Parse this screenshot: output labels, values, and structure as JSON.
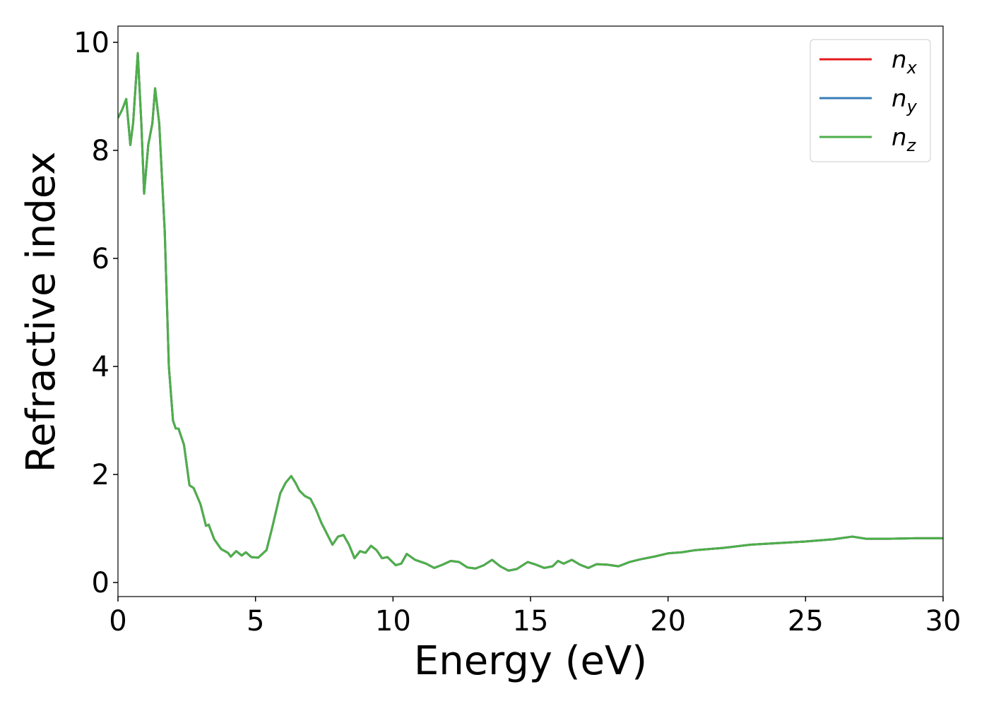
{
  "chart_data": {
    "type": "line",
    "x_label": "Energy (eV)",
    "y_label": "Refractive index",
    "xlim": [
      0,
      30
    ],
    "ylim": [
      -0.26,
      10.3
    ],
    "xticks": [
      0,
      5,
      10,
      15,
      20,
      25,
      30
    ],
    "yticks": [
      0,
      2,
      4,
      6,
      8,
      10
    ],
    "legend_position": "upper right",
    "grid": false,
    "x": [
      0,
      0.15,
      0.3,
      0.45,
      0.55,
      0.72,
      0.85,
      0.95,
      1.1,
      1.25,
      1.35,
      1.5,
      1.7,
      1.85,
      2.0,
      2.1,
      2.2,
      2.4,
      2.6,
      2.75,
      3.0,
      3.2,
      3.3,
      3.5,
      3.75,
      4.0,
      4.1,
      4.3,
      4.5,
      4.65,
      4.85,
      5.1,
      5.4,
      5.6,
      5.9,
      6.1,
      6.3,
      6.45,
      6.6,
      6.8,
      7.0,
      7.2,
      7.4,
      7.6,
      7.8,
      8.0,
      8.2,
      8.4,
      8.6,
      8.8,
      9.0,
      9.2,
      9.4,
      9.6,
      9.8,
      10.1,
      10.3,
      10.5,
      10.8,
      11.2,
      11.5,
      11.8,
      12.1,
      12.4,
      12.7,
      13.0,
      13.3,
      13.6,
      13.9,
      14.2,
      14.5,
      14.9,
      15.2,
      15.5,
      15.8,
      16.0,
      16.2,
      16.5,
      16.8,
      17.1,
      17.4,
      17.8,
      18.2,
      18.6,
      19.0,
      19.5,
      20,
      20.5,
      21,
      22,
      23,
      24,
      25,
      26,
      26.7,
      27.2,
      28,
      29,
      30
    ],
    "series": [
      {
        "name": "nx",
        "color": "#e41a1c",
        "values": [
          8.6,
          8.75,
          8.95,
          8.1,
          8.5,
          9.8,
          8.5,
          7.2,
          8.1,
          8.5,
          9.15,
          8.5,
          6.5,
          4.0,
          3.0,
          2.85,
          2.85,
          2.55,
          1.8,
          1.75,
          1.45,
          1.05,
          1.07,
          0.8,
          0.62,
          0.55,
          0.48,
          0.58,
          0.5,
          0.56,
          0.47,
          0.46,
          0.6,
          1.0,
          1.65,
          1.85,
          1.97,
          1.85,
          1.7,
          1.6,
          1.55,
          1.35,
          1.1,
          0.9,
          0.7,
          0.85,
          0.88,
          0.7,
          0.45,
          0.58,
          0.55,
          0.68,
          0.6,
          0.45,
          0.47,
          0.32,
          0.35,
          0.53,
          0.42,
          0.35,
          0.27,
          0.33,
          0.4,
          0.38,
          0.28,
          0.26,
          0.32,
          0.42,
          0.3,
          0.22,
          0.25,
          0.38,
          0.33,
          0.27,
          0.3,
          0.4,
          0.35,
          0.42,
          0.33,
          0.27,
          0.34,
          0.33,
          0.3,
          0.38,
          0.43,
          0.48,
          0.54,
          0.56,
          0.6,
          0.64,
          0.7,
          0.73,
          0.76,
          0.8,
          0.85,
          0.81,
          0.81,
          0.82,
          0.82
        ]
      },
      {
        "name": "ny",
        "color": "#377eb8",
        "values": [
          8.6,
          8.75,
          8.95,
          8.1,
          8.5,
          9.8,
          8.5,
          7.2,
          8.1,
          8.5,
          9.15,
          8.5,
          6.5,
          4.0,
          3.0,
          2.85,
          2.85,
          2.55,
          1.8,
          1.75,
          1.45,
          1.05,
          1.07,
          0.8,
          0.62,
          0.55,
          0.48,
          0.58,
          0.5,
          0.56,
          0.47,
          0.46,
          0.6,
          1.0,
          1.65,
          1.85,
          1.97,
          1.85,
          1.7,
          1.6,
          1.55,
          1.35,
          1.1,
          0.9,
          0.7,
          0.85,
          0.88,
          0.7,
          0.45,
          0.58,
          0.55,
          0.68,
          0.6,
          0.45,
          0.47,
          0.32,
          0.35,
          0.53,
          0.42,
          0.35,
          0.27,
          0.33,
          0.4,
          0.38,
          0.28,
          0.26,
          0.32,
          0.42,
          0.3,
          0.22,
          0.25,
          0.38,
          0.33,
          0.27,
          0.3,
          0.4,
          0.35,
          0.42,
          0.33,
          0.27,
          0.34,
          0.33,
          0.3,
          0.38,
          0.43,
          0.48,
          0.54,
          0.56,
          0.6,
          0.64,
          0.7,
          0.73,
          0.76,
          0.8,
          0.85,
          0.81,
          0.81,
          0.82,
          0.82
        ]
      },
      {
        "name": "nz",
        "color": "#4daf4a",
        "values": [
          8.6,
          8.75,
          8.95,
          8.1,
          8.5,
          9.8,
          8.5,
          7.2,
          8.1,
          8.5,
          9.15,
          8.5,
          6.5,
          4.0,
          3.0,
          2.85,
          2.85,
          2.55,
          1.8,
          1.75,
          1.45,
          1.05,
          1.07,
          0.8,
          0.62,
          0.55,
          0.48,
          0.58,
          0.5,
          0.56,
          0.47,
          0.46,
          0.6,
          1.0,
          1.65,
          1.85,
          1.97,
          1.85,
          1.7,
          1.6,
          1.55,
          1.35,
          1.1,
          0.9,
          0.7,
          0.85,
          0.88,
          0.7,
          0.45,
          0.58,
          0.55,
          0.68,
          0.6,
          0.45,
          0.47,
          0.32,
          0.35,
          0.53,
          0.42,
          0.35,
          0.27,
          0.33,
          0.4,
          0.38,
          0.28,
          0.26,
          0.32,
          0.42,
          0.3,
          0.22,
          0.25,
          0.38,
          0.33,
          0.27,
          0.3,
          0.4,
          0.35,
          0.42,
          0.33,
          0.27,
          0.34,
          0.33,
          0.3,
          0.38,
          0.43,
          0.48,
          0.54,
          0.56,
          0.6,
          0.64,
          0.7,
          0.73,
          0.76,
          0.8,
          0.85,
          0.81,
          0.81,
          0.82,
          0.82
        ]
      }
    ]
  }
}
